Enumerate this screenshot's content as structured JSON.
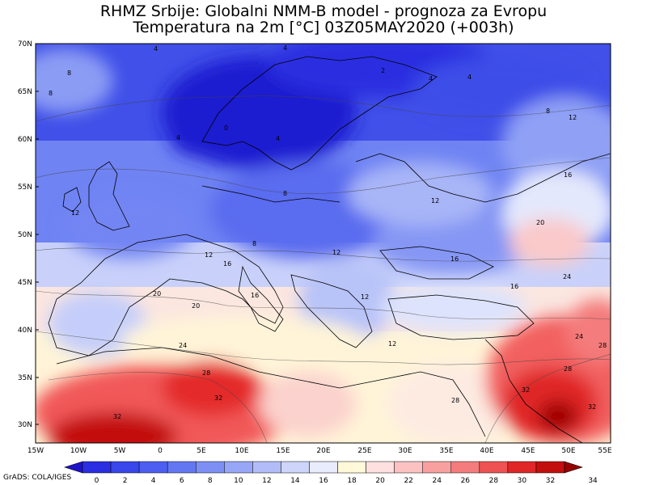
{
  "title": {
    "line1": "RHMZ Srbije: Globalni NMM-B model - prognoza za Evropu",
    "line2": "Temperatura na 2m [°C] 03Z05MAY2020 (+003h)"
  },
  "credit": "GrADS: COLA/IGES",
  "map": {
    "lon_ticks": [
      "15W",
      "10W",
      "5W",
      "0",
      "5E",
      "10E",
      "15E",
      "20E",
      "25E",
      "30E",
      "35E",
      "40E",
      "45E",
      "50E",
      "55E"
    ],
    "lat_ticks": [
      "70N",
      "65N",
      "60N",
      "55N",
      "50N",
      "45N",
      "40N",
      "35N",
      "30N"
    ],
    "contour_labels": [
      "4",
      "4",
      "8",
      "8",
      "2",
      "4",
      "4",
      "8",
      "12",
      "0",
      "4",
      "4",
      "16",
      "12",
      "12",
      "8",
      "8",
      "12",
      "16",
      "20",
      "16",
      "12",
      "12",
      "16",
      "20",
      "20",
      "16",
      "12",
      "24",
      "24",
      "28",
      "32",
      "32",
      "28",
      "24",
      "32",
      "32",
      "28",
      "28"
    ]
  },
  "legend": {
    "levels": [
      "0",
      "2",
      "4",
      "6",
      "8",
      "10",
      "12",
      "14",
      "16",
      "18",
      "20",
      "22",
      "24",
      "26",
      "28",
      "30",
      "32",
      "34"
    ],
    "colors": [
      "#1e14c8",
      "#2a2ee0",
      "#3846ea",
      "#4d5ff0",
      "#6477f2",
      "#7d8ff4",
      "#97a6f6",
      "#b2bdf8",
      "#cdd5fb",
      "#e8ecfd",
      "#fff8d9",
      "#fde0df",
      "#fcc2c2",
      "#f8a0a0",
      "#f47c7c",
      "#ee5252",
      "#e02626",
      "#c30e0e",
      "#950000"
    ]
  }
}
